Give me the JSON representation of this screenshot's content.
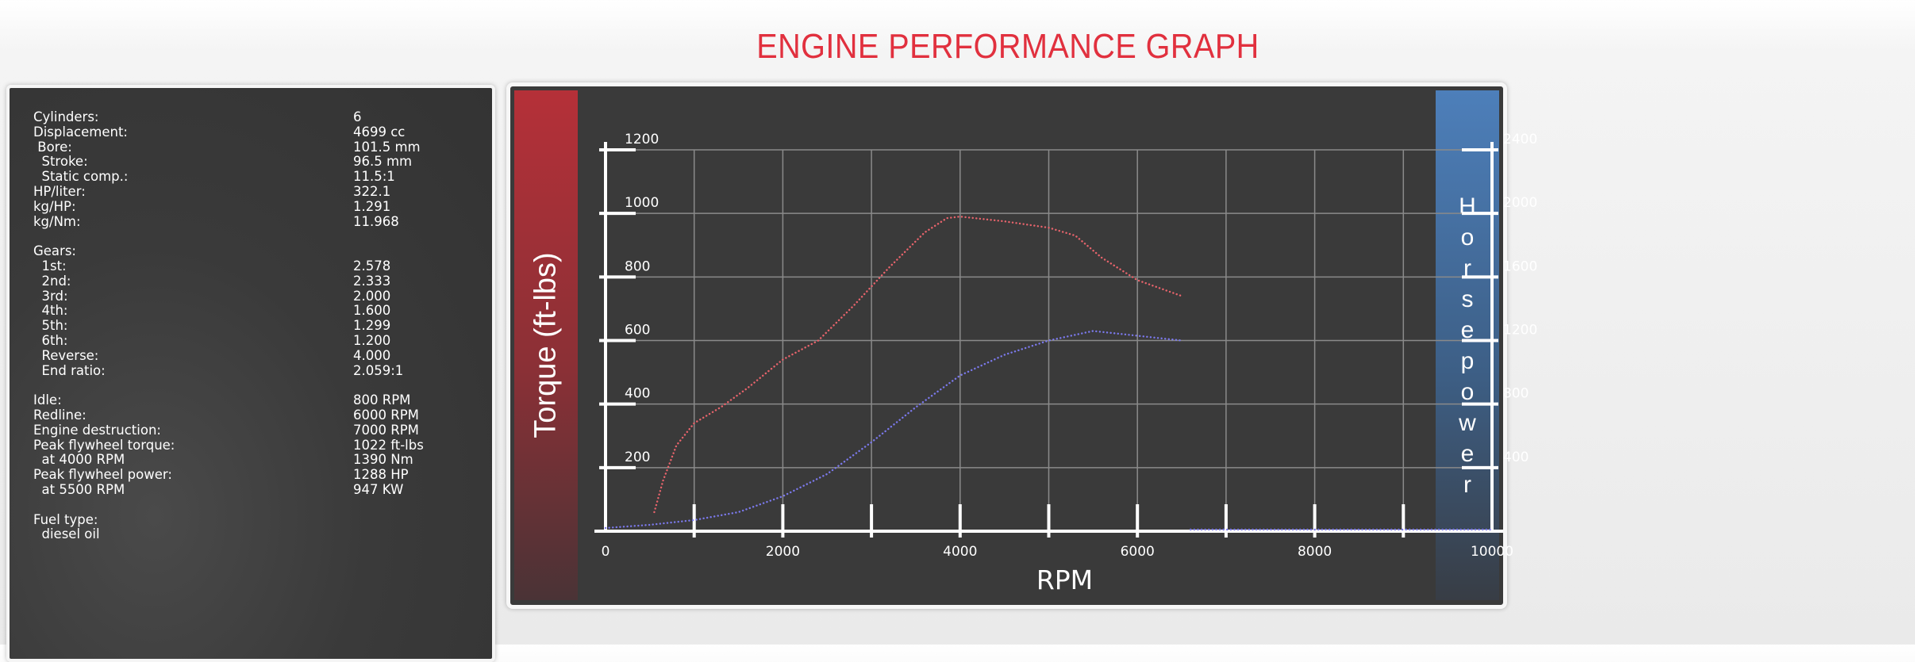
{
  "title": "ENGINE PERFORMANCE GRAPH",
  "specs": {
    "block1": [
      {
        "label": "Cylinders:",
        "value": "6"
      },
      {
        "label": "Displacement:",
        "value": "4699 cc"
      },
      {
        "label": " Bore:",
        "value": "101.5 mm"
      },
      {
        "label": "  Stroke:",
        "value": "96.5 mm"
      },
      {
        "label": "  Static comp.:",
        "value": "11.5:1"
      },
      {
        "label": "HP/liter:",
        "value": "322.1"
      },
      {
        "label": "kg/HP:",
        "value": "1.291"
      },
      {
        "label": "kg/Nm:",
        "value": "11.968"
      }
    ],
    "block2": [
      {
        "label": "Gears:",
        "value": ""
      },
      {
        "label": "  1st:",
        "value": "2.578"
      },
      {
        "label": "  2nd:",
        "value": "2.333"
      },
      {
        "label": "  3rd:",
        "value": "2.000"
      },
      {
        "label": "  4th:",
        "value": "1.600"
      },
      {
        "label": "  5th:",
        "value": "1.299"
      },
      {
        "label": "  6th:",
        "value": "1.200"
      },
      {
        "label": "  Reverse:",
        "value": "4.000"
      },
      {
        "label": "  End ratio:",
        "value": "2.059:1"
      }
    ],
    "block3": [
      {
        "label": "Idle:",
        "value": "800 RPM"
      },
      {
        "label": "Redline:",
        "value": "6000 RPM"
      },
      {
        "label": "Engine destruction:",
        "value": "7000 RPM"
      },
      {
        "label": "Peak flywheel torque:",
        "value": "1022 ft-lbs"
      },
      {
        "label": "  at 4000 RPM",
        "value": "1390 Nm"
      },
      {
        "label": "Peak flywheel power:",
        "value": "1288 HP"
      },
      {
        "label": "  at 5500 RPM",
        "value": "947 KW"
      }
    ],
    "block4": [
      {
        "label": "Fuel type:",
        "value": ""
      },
      {
        "label": "  diesel oil",
        "value": ""
      }
    ]
  },
  "chart_data": {
    "type": "line",
    "xlabel": "RPM",
    "ylabel_left": "Torque (ft-lbs)",
    "ylabel_right": "Horsepower",
    "xlim": [
      0,
      10000
    ],
    "ylim_left": [
      0,
      1200
    ],
    "ylim_right": [
      0,
      2400
    ],
    "x_ticks": [
      0,
      2000,
      4000,
      6000,
      8000,
      10000
    ],
    "y_ticks_left": [
      200,
      400,
      600,
      800,
      1000,
      1200
    ],
    "y_ticks_right": [
      400,
      800,
      1200,
      1600,
      2000,
      2400
    ],
    "grid": true,
    "series": [
      {
        "color": "#e8646c",
        "axis": "left",
        "x": [
          550,
          650,
          800,
          1000,
          1300,
          1600,
          2000,
          2400,
          2800,
          3200,
          3600,
          3850,
          4000,
          4500,
          5000,
          5300,
          5600,
          6000,
          6500
        ],
        "y": [
          60,
          160,
          270,
          340,
          390,
          450,
          540,
          600,
          710,
          830,
          940,
          985,
          990,
          975,
          955,
          930,
          860,
          790,
          740
        ]
      },
      {
        "color": "#7b79ec",
        "axis": "right",
        "x": [
          0,
          500,
          1000,
          1500,
          2000,
          2500,
          3000,
          3500,
          4000,
          4500,
          5000,
          5500,
          6000,
          6500
        ],
        "y": [
          20,
          40,
          70,
          120,
          220,
          360,
          560,
          780,
          980,
          1110,
          1200,
          1260,
          1230,
          1200
        ]
      },
      {
        "color": "#7b79ec",
        "axis": "right",
        "x": [
          6600,
          10000
        ],
        "y": [
          10,
          10
        ]
      }
    ]
  }
}
